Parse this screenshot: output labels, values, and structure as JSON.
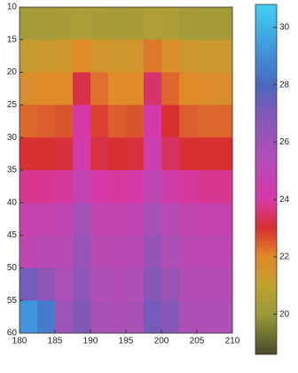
{
  "chart_data": {
    "type": "heatmap",
    "x_edges": [
      180,
      182.5,
      185,
      187.5,
      190,
      192.5,
      195,
      197.5,
      200,
      202.5,
      205,
      207.5,
      210
    ],
    "y_edges": [
      10,
      15,
      20,
      25,
      30,
      35,
      40,
      45,
      50,
      55,
      60
    ],
    "z": [
      [
        20.3,
        20.3,
        20.4,
        20.5,
        20.4,
        20.3,
        20.4,
        20.6,
        20.5,
        20.3,
        20.2,
        20.2
      ],
      [
        21.2,
        21.3,
        21.4,
        22.0,
        21.5,
        21.4,
        21.5,
        22.2,
        21.8,
        21.4,
        21.3,
        21.3
      ],
      [
        21.8,
        22,
        22,
        23.2,
        22.3,
        22,
        22,
        23.5,
        22.4,
        22,
        21.9,
        21.8
      ],
      [
        22.4,
        22.5,
        22.6,
        24.0,
        22.8,
        22.5,
        22.6,
        24.2,
        23.0,
        22.5,
        22.4,
        22.4
      ],
      [
        23,
        23,
        23.1,
        24.2,
        23.2,
        23,
        23.1,
        24.5,
        23.4,
        23,
        23,
        23
      ],
      [
        23.8,
        23.8,
        23.9,
        24.8,
        24,
        23.9,
        24,
        25,
        24.3,
        23.9,
        23.8,
        23.8
      ],
      [
        24.6,
        24.6,
        24.8,
        25.8,
        24.8,
        24.7,
        24.8,
        25.8,
        25.2,
        24.7,
        24.6,
        24.6
      ],
      [
        25,
        25.2,
        25.2,
        26.2,
        25.2,
        25.1,
        25.2,
        26.3,
        25.6,
        25.1,
        25,
        25
      ],
      [
        27.2,
        26.5,
        25.6,
        26.6,
        25.5,
        25.4,
        25.5,
        26.8,
        26.2,
        25.4,
        25.3,
        25.3
      ],
      [
        29.2,
        28.5,
        26,
        27,
        25.7,
        25.6,
        25.7,
        27.2,
        26.8,
        25.6,
        25.5,
        25.5
      ]
    ],
    "xlim": [
      180,
      210
    ],
    "xticks": [
      180,
      185,
      190,
      195,
      200,
      205,
      210
    ],
    "ylim": [
      10,
      60
    ],
    "yticks": [
      10,
      15,
      20,
      25,
      30,
      35,
      40,
      45,
      50,
      55,
      60
    ],
    "y_reversed": true,
    "clim": [
      18.6,
      30.8
    ],
    "cticks": [
      20,
      22,
      24,
      26,
      28,
      30
    ],
    "colormap": [
      {
        "value": 18.6,
        "color": "#4a4a2a"
      },
      {
        "value": 20,
        "color": "#9a9a3a"
      },
      {
        "value": 21,
        "color": "#c0a030"
      },
      {
        "value": 22,
        "color": "#e08a2a"
      },
      {
        "value": 23,
        "color": "#d83030"
      },
      {
        "value": 24,
        "color": "#d838a8"
      },
      {
        "value": 25.5,
        "color": "#b050b8"
      },
      {
        "value": 27,
        "color": "#8058b8"
      },
      {
        "value": 28,
        "color": "#4a68c0"
      },
      {
        "value": 29.5,
        "color": "#40a0e0"
      },
      {
        "value": 30.8,
        "color": "#40d0f0"
      }
    ]
  }
}
